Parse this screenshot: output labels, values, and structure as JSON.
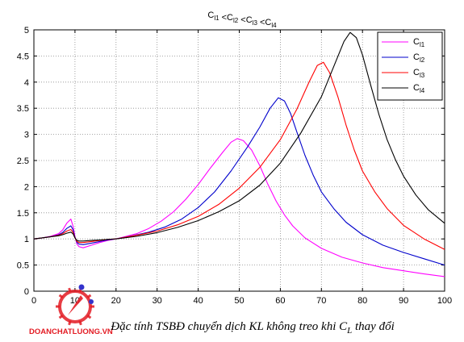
{
  "chart_data": {
    "type": "line",
    "title": {
      "parts": [
        {
          "base": "C",
          "sub": "l1"
        },
        {
          "base": " <C",
          "sub": "l2"
        },
        {
          "base": " <C",
          "sub": "l3"
        },
        {
          "base": " <C",
          "sub": "l4"
        }
      ]
    },
    "xlabel": "",
    "ylabel": "",
    "xlim": [
      0,
      100
    ],
    "ylim": [
      0,
      5
    ],
    "xticks": [
      0,
      10,
      20,
      30,
      40,
      50,
      60,
      70,
      80,
      90,
      100
    ],
    "yticks": [
      0,
      0.5,
      1,
      1.5,
      2,
      2.5,
      3,
      3.5,
      4,
      4.5,
      5
    ],
    "grid": true,
    "legend_position": "top-right",
    "series": [
      {
        "name": {
          "base": "C",
          "sub": "l1"
        },
        "color": "#ff00ff",
        "points": [
          [
            0,
            1.0
          ],
          [
            2,
            1.02
          ],
          [
            4,
            1.05
          ],
          [
            6,
            1.1
          ],
          [
            7,
            1.17
          ],
          [
            8,
            1.3
          ],
          [
            9,
            1.38
          ],
          [
            9.5,
            1.25
          ],
          [
            10,
            1.05
          ],
          [
            10.5,
            0.9
          ],
          [
            11,
            0.85
          ],
          [
            12,
            0.83
          ],
          [
            14,
            0.88
          ],
          [
            16,
            0.93
          ],
          [
            18,
            0.97
          ],
          [
            20,
            1.0
          ],
          [
            22,
            1.04
          ],
          [
            25,
            1.1
          ],
          [
            28,
            1.2
          ],
          [
            31,
            1.34
          ],
          [
            34,
            1.52
          ],
          [
            37,
            1.76
          ],
          [
            40,
            2.04
          ],
          [
            43,
            2.36
          ],
          [
            46,
            2.66
          ],
          [
            48,
            2.85
          ],
          [
            49.5,
            2.92
          ],
          [
            51,
            2.88
          ],
          [
            53,
            2.7
          ],
          [
            55,
            2.4
          ],
          [
            57,
            2.04
          ],
          [
            59,
            1.72
          ],
          [
            61,
            1.46
          ],
          [
            63,
            1.25
          ],
          [
            66,
            1.02
          ],
          [
            70,
            0.82
          ],
          [
            75,
            0.65
          ],
          [
            80,
            0.54
          ],
          [
            85,
            0.45
          ],
          [
            90,
            0.39
          ],
          [
            95,
            0.33
          ],
          [
            100,
            0.28
          ]
        ]
      },
      {
        "name": {
          "base": "C",
          "sub": "l2"
        },
        "color": "#0000cc",
        "points": [
          [
            0,
            1.0
          ],
          [
            2,
            1.02
          ],
          [
            4,
            1.04
          ],
          [
            6,
            1.08
          ],
          [
            7,
            1.12
          ],
          [
            8,
            1.2
          ],
          [
            9,
            1.25
          ],
          [
            9.5,
            1.18
          ],
          [
            10,
            1.03
          ],
          [
            10.5,
            0.93
          ],
          [
            11,
            0.9
          ],
          [
            12,
            0.89
          ],
          [
            14,
            0.92
          ],
          [
            16,
            0.95
          ],
          [
            18,
            0.98
          ],
          [
            20,
            1.0
          ],
          [
            24,
            1.06
          ],
          [
            28,
            1.13
          ],
          [
            32,
            1.23
          ],
          [
            36,
            1.38
          ],
          [
            40,
            1.6
          ],
          [
            44,
            1.9
          ],
          [
            48,
            2.3
          ],
          [
            52,
            2.76
          ],
          [
            55,
            3.14
          ],
          [
            57.5,
            3.5
          ],
          [
            59.5,
            3.7
          ],
          [
            61,
            3.64
          ],
          [
            62.5,
            3.4
          ],
          [
            64,
            3.05
          ],
          [
            66,
            2.6
          ],
          [
            68,
            2.22
          ],
          [
            70,
            1.9
          ],
          [
            73,
            1.58
          ],
          [
            76,
            1.32
          ],
          [
            80,
            1.08
          ],
          [
            85,
            0.88
          ],
          [
            90,
            0.74
          ],
          [
            95,
            0.62
          ],
          [
            100,
            0.5
          ]
        ]
      },
      {
        "name": {
          "base": "C",
          "sub": "l3"
        },
        "color": "#ff0000",
        "points": [
          [
            0,
            1.0
          ],
          [
            2,
            1.02
          ],
          [
            4,
            1.04
          ],
          [
            6,
            1.07
          ],
          [
            7,
            1.1
          ],
          [
            8,
            1.15
          ],
          [
            9,
            1.18
          ],
          [
            9.5,
            1.13
          ],
          [
            10,
            1.02
          ],
          [
            10.5,
            0.95
          ],
          [
            11,
            0.93
          ],
          [
            12,
            0.93
          ],
          [
            14,
            0.95
          ],
          [
            16,
            0.97
          ],
          [
            18,
            0.99
          ],
          [
            20,
            1.0
          ],
          [
            25,
            1.07
          ],
          [
            30,
            1.15
          ],
          [
            35,
            1.27
          ],
          [
            40,
            1.43
          ],
          [
            45,
            1.66
          ],
          [
            50,
            1.97
          ],
          [
            55,
            2.37
          ],
          [
            60,
            2.9
          ],
          [
            64,
            3.48
          ],
          [
            67,
            4.0
          ],
          [
            69,
            4.32
          ],
          [
            70.5,
            4.38
          ],
          [
            72,
            4.18
          ],
          [
            74,
            3.72
          ],
          [
            76,
            3.18
          ],
          [
            78,
            2.7
          ],
          [
            80,
            2.3
          ],
          [
            83,
            1.9
          ],
          [
            86,
            1.58
          ],
          [
            90,
            1.26
          ],
          [
            95,
            1.0
          ],
          [
            100,
            0.8
          ]
        ]
      },
      {
        "name": {
          "base": "C",
          "sub": "l4"
        },
        "color": "#000000",
        "points": [
          [
            0,
            1.0
          ],
          [
            2,
            1.02
          ],
          [
            4,
            1.04
          ],
          [
            6,
            1.06
          ],
          [
            7,
            1.08
          ],
          [
            8,
            1.11
          ],
          [
            9,
            1.13
          ],
          [
            9.5,
            1.1
          ],
          [
            10,
            1.02
          ],
          [
            10.5,
            0.97
          ],
          [
            11,
            0.96
          ],
          [
            12,
            0.96
          ],
          [
            14,
            0.97
          ],
          [
            16,
            0.98
          ],
          [
            18,
            0.99
          ],
          [
            20,
            1.0
          ],
          [
            25,
            1.05
          ],
          [
            30,
            1.12
          ],
          [
            35,
            1.22
          ],
          [
            40,
            1.35
          ],
          [
            45,
            1.52
          ],
          [
            50,
            1.73
          ],
          [
            55,
            2.03
          ],
          [
            60,
            2.45
          ],
          [
            65,
            3.03
          ],
          [
            70,
            3.72
          ],
          [
            73,
            4.3
          ],
          [
            75.5,
            4.78
          ],
          [
            77,
            4.95
          ],
          [
            78.5,
            4.85
          ],
          [
            80,
            4.52
          ],
          [
            82,
            3.94
          ],
          [
            84,
            3.38
          ],
          [
            86,
            2.9
          ],
          [
            88,
            2.52
          ],
          [
            90,
            2.2
          ],
          [
            93,
            1.84
          ],
          [
            96,
            1.56
          ],
          [
            100,
            1.3
          ]
        ]
      }
    ],
    "caption": {
      "prefix": "Đặc tính TSBĐ chuyển dịch KL không treo khi C",
      "sub": "L",
      "suffix": " thay đổi"
    }
  },
  "watermark": {
    "text": "DOANCHATLUONG.VN",
    "colors": {
      "main": "#e31b23",
      "dot": "#3333cc"
    }
  },
  "colors": {
    "axes": "#000000",
    "grid": "#8c8c8c",
    "background": "#ffffff"
  }
}
